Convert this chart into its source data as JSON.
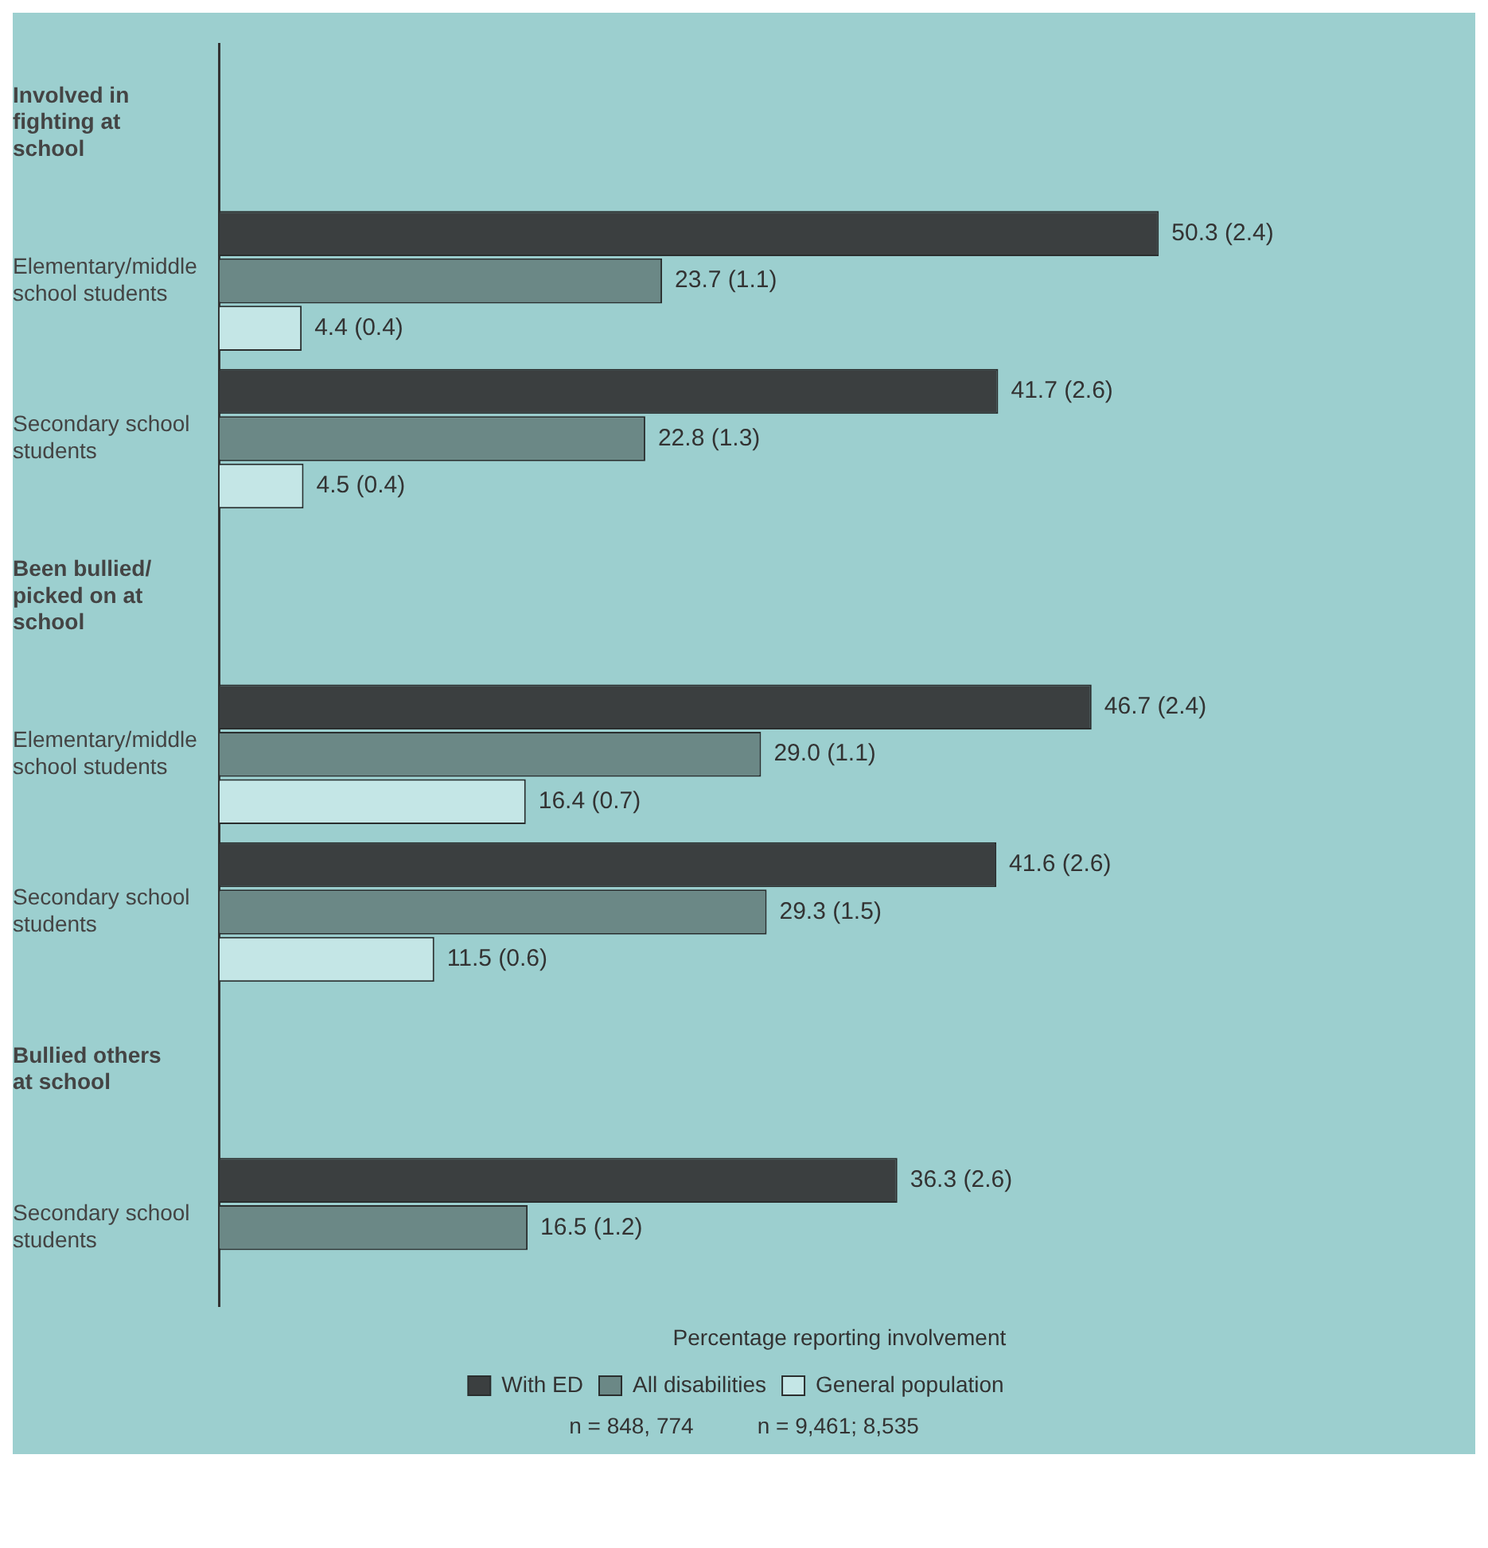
{
  "chart_data": {
    "type": "bar",
    "orientation": "horizontal",
    "xlabel": "Percentage reporting involvement",
    "categories": [
      "Involved in fighting at school",
      "Elementary/middle school students",
      "Secondary school students",
      "Been bullied/ picked on at school",
      "Elementary/middle school students",
      "Secondary school students",
      "Bullied others at school",
      "Secondary school students"
    ],
    "series": [
      {
        "name": "With ED",
        "color": "#3b3f40",
        "values": [
          null,
          50.3,
          41.7,
          null,
          46.7,
          41.6,
          null,
          36.3
        ],
        "value_labels": [
          null,
          "50.3 (2.4)",
          "41.7 (2.6)",
          null,
          "46.7 (2.4)",
          "41.6 (2.6)",
          null,
          "36.3 (2.6)"
        ]
      },
      {
        "name": "All disabilities",
        "color": "#6b8886",
        "values": [
          null,
          23.7,
          22.8,
          null,
          29.0,
          29.3,
          null,
          16.5
        ],
        "value_labels": [
          null,
          "23.7 (1.1)",
          "22.8 (1.3)",
          null,
          "29.0 (1.1)",
          "29.3 (1.5)",
          null,
          "16.5 (1.2)"
        ]
      },
      {
        "name": "General population",
        "color": "#c4e6e6",
        "values": [
          null,
          4.4,
          4.5,
          null,
          16.4,
          11.5,
          null,
          null
        ],
        "value_labels": [
          null,
          "4.4 (0.4)",
          "4.5 (0.4)",
          null,
          "16.4 (0.7)",
          "11.5 (0.6)",
          null,
          null
        ]
      }
    ],
    "annotations": [
      "n = 848, 774",
      "n = 9,461; 8,535"
    ],
    "legend": "bottom",
    "grid": false,
    "tick_labels": "y"
  }
}
